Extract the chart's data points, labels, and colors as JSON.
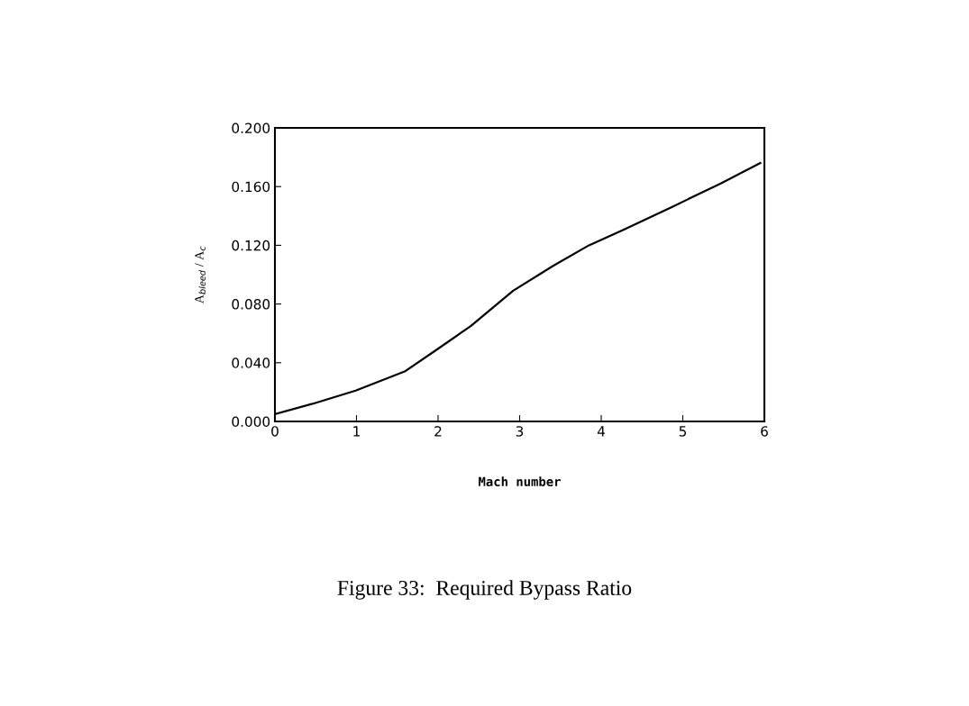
{
  "chart_data": {
    "type": "line",
    "title": "Figure 33:  Required Bypass Ratio",
    "xlabel": "Mach number",
    "ylabel": "A$_{bleed}$ / A$_{c}$",
    "x": [
      0,
      0.46,
      0.99,
      1.59,
      1.96,
      2.4,
      2.92,
      3.41,
      3.85,
      4.33,
      4.9,
      5.46,
      5.95
    ],
    "series": [
      {
        "color": "#000000",
        "values": [
          0.005,
          0.012,
          0.021,
          0.034,
          0.048,
          0.065,
          0.089,
          0.106,
          0.12,
          0.132,
          0.147,
          0.162,
          0.176
        ]
      }
    ],
    "xlim": [
      0,
      6
    ],
    "xticks": [
      0,
      1,
      2,
      3,
      4,
      5,
      6
    ],
    "ylim": [
      0,
      0.2
    ],
    "yticks": [
      {
        "value": 0,
        "label": "0.000"
      },
      {
        "value": 0.04,
        "label": "0.040"
      },
      {
        "value": 0.08,
        "label": "0.080"
      },
      {
        "value": 0.12,
        "label": "0.120"
      },
      {
        "value": 0.16,
        "label": "0.160"
      },
      {
        "value": 0.2,
        "label": "0.200"
      }
    ],
    "grid": false,
    "legend": false,
    "marker": "none",
    "line_style": "solid"
  }
}
